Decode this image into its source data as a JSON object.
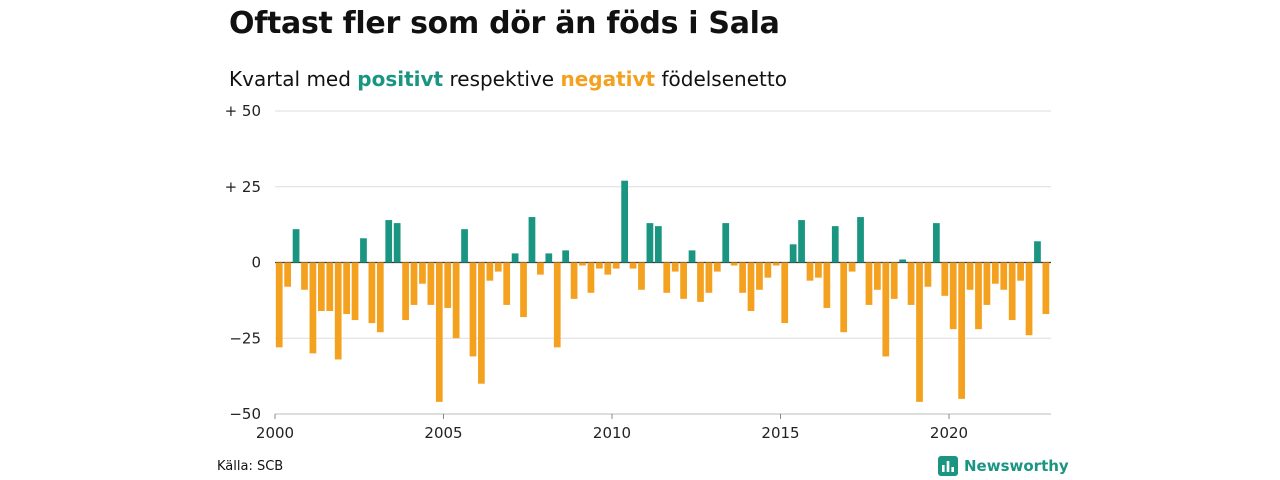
{
  "header": {
    "title": "Oftast fler som dör än föds i Sala",
    "subtitle_start": "Kvartal med ",
    "subtitle_positive": "positivt",
    "subtitle_middle": " respektive ",
    "subtitle_negative": "negativt",
    "subtitle_end": " födelsenetto"
  },
  "footer": {
    "source": "Källa: SCB",
    "brand": "Newsworthy"
  },
  "colors": {
    "positive": "#1a9581",
    "negative": "#f3a11f",
    "grid": "#dddddd",
    "axis": "#333333"
  },
  "chart_data": {
    "type": "bar",
    "x_unit": "quarter",
    "start": "2000Q1",
    "x_ticks": [
      "2000",
      "2005",
      "2010",
      "2015",
      "2020"
    ],
    "y_ticks": [
      "+ 50",
      "+ 25",
      "0",
      "−25",
      "−50"
    ],
    "ylim": [
      -50,
      50
    ],
    "grid": true,
    "values": [
      -28,
      -8,
      11,
      -9,
      -30,
      -16,
      -16,
      -32,
      -17,
      -19,
      8,
      -20,
      -23,
      14,
      13,
      -19,
      -14,
      -7,
      -14,
      -46,
      -15,
      -25,
      11,
      -31,
      -40,
      -6,
      -3,
      -14,
      3,
      -18,
      15,
      -4,
      3,
      -28,
      4,
      -12,
      -1,
      -10,
      -2,
      -4,
      -2,
      27,
      -2,
      -9,
      13,
      12,
      -10,
      -3,
      -12,
      4,
      -13,
      -10,
      -3,
      13,
      -1,
      -10,
      -16,
      -9,
      -5,
      -1,
      -20,
      6,
      14,
      -6,
      -5,
      -15,
      12,
      -23,
      -3,
      15,
      -14,
      -9,
      -31,
      -12,
      1,
      -14,
      -46,
      -8,
      13,
      -11,
      -22,
      -45,
      -9,
      -22,
      -14,
      -7,
      -9,
      -19,
      -6,
      -24,
      7,
      -17
    ]
  }
}
